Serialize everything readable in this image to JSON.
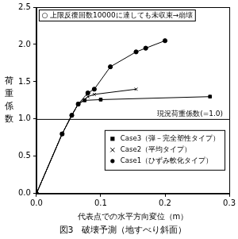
{
  "chart_data": {
    "type": "line",
    "title": "図3　破壊予測（地すべり斜面）",
    "x_label": "代表点での水平方向変位（m）",
    "y_label": "荷重係数",
    "xlim": [
      0,
      0.3
    ],
    "xticks": [
      {
        "value": 0,
        "label": "0.0"
      },
      0.1,
      0.2,
      0.3
    ],
    "ylim": [
      0,
      2.5
    ],
    "yticks": [
      {
        "value": 0,
        "label": "0.0"
      },
      0.5,
      {
        "value": 1,
        "label": "1.0"
      },
      1.5,
      {
        "value": 2,
        "label": "2.0"
      },
      2.5
    ],
    "grid": false,
    "legend": "lower right",
    "annotations": [
      {
        "text": "○ 上限反復回数10000に達しても未収束→崩壊"
      },
      {
        "text": "現況荷重係数(=1.0)",
        "y": 1.0
      }
    ],
    "series": [
      {
        "name": "Case3（弾－完全塑性タイプ）",
        "color": "#000000",
        "marker": "square",
        "x": [
          0,
          0.04,
          0.055,
          0.065,
          0.075,
          0.1,
          0.27
        ],
        "values": [
          0,
          0.8,
          1.05,
          1.2,
          1.25,
          1.26,
          1.3
        ]
      },
      {
        "name": "Case2（平均タイプ）",
        "color": "#000000",
        "marker": "cross",
        "x": [
          0,
          0.04,
          0.055,
          0.065,
          0.08,
          0.09,
          0.155
        ],
        "values": [
          0,
          0.8,
          1.05,
          1.2,
          1.3,
          1.33,
          1.4
        ]
      },
      {
        "name": "Case1（ひずみ軟化タイプ）",
        "color": "#000000",
        "marker": "circle",
        "x": [
          0,
          0.04,
          0.055,
          0.065,
          0.08,
          0.09,
          0.115,
          0.155,
          0.17,
          0.2
        ],
        "values": [
          0,
          0.8,
          1.05,
          1.2,
          1.35,
          1.4,
          1.7,
          1.9,
          1.95,
          2.05
        ]
      }
    ]
  }
}
